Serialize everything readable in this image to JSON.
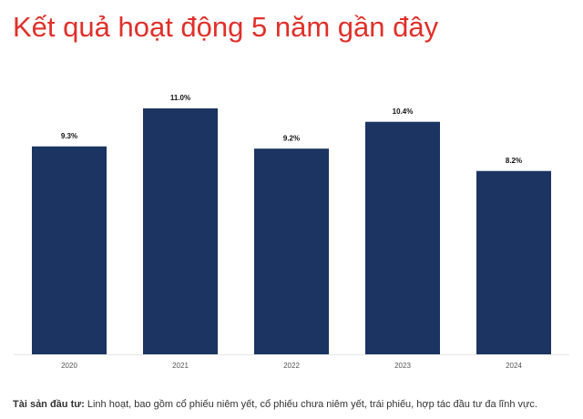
{
  "chart_data": {
    "type": "bar",
    "title": "Kết quả hoạt động 5 năm gần đây",
    "categories": [
      "2020",
      "2021",
      "2022",
      "2023",
      "2024"
    ],
    "values": [
      9.3,
      11.0,
      9.2,
      10.4,
      8.2
    ],
    "value_labels": [
      "9.3%",
      "11.0%",
      "9.2%",
      "10.4%",
      "8.2%"
    ],
    "color": "#1b3461",
    "footnote_label": "Tài sản đầu tư:",
    "footnote": "Linh hoạt, bao gồm cổ phiếu niêm yết, cổ phiếu chưa niêm yết, trái phiếu, hợp tác đầu tư đa lĩnh vực."
  }
}
